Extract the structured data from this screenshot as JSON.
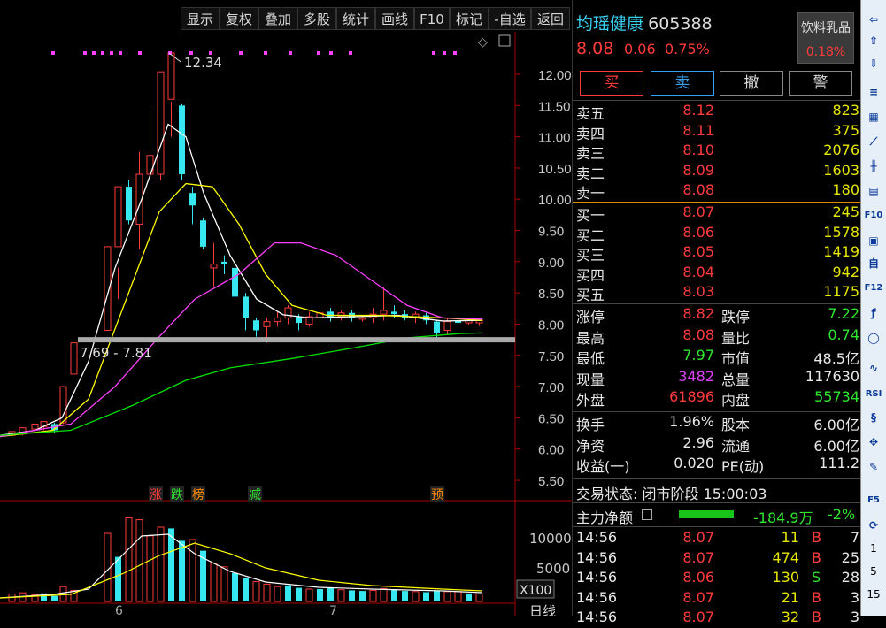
{
  "toolbar": {
    "buttons": [
      "显示",
      "复权",
      "叠加",
      "多股",
      "统计",
      "画线",
      "F10",
      "标记",
      "-自选",
      "返回"
    ]
  },
  "chart": {
    "price_ticks": [
      "12.00",
      "11.50",
      "11.00",
      "10.50",
      "10.00",
      "9.50",
      "9.00",
      "8.50",
      "8.00",
      "7.50",
      "7.00",
      "6.50",
      "6.00",
      "5.50"
    ],
    "high_label": "12.34",
    "range_label": "7.69 - 7.81",
    "event_tags": [
      {
        "text": "涨",
        "color": "#ff3b3b"
      },
      {
        "text": "跌",
        "color": "#2ee62e"
      },
      {
        "text": "榜",
        "color": "#ff8c00"
      },
      {
        "text": "减",
        "color": "#2ee62e"
      },
      {
        "text": "预",
        "color": "#ff8c00"
      }
    ],
    "volume_ticks": [
      "10000",
      "5000"
    ],
    "volume_unit": "X100",
    "month_labels": [
      "6",
      "7"
    ],
    "period_label": "日线",
    "ma_colors": {
      "ma5": "#ffffff",
      "ma10": "#ffff00",
      "ma20": "#ff40ff",
      "ma60": "#00e000"
    }
  },
  "quote": {
    "name": "均瑶健康",
    "code": "605388",
    "price": "8.08",
    "change": "0.06",
    "change_pct": "0.75%",
    "sector": "饮料乳品",
    "sector_pct": "0.18%",
    "buttons": [
      "买",
      "卖",
      "撤",
      "警"
    ],
    "asks": [
      {
        "label": "卖五",
        "price": "8.12",
        "vol": "823"
      },
      {
        "label": "卖四",
        "price": "8.11",
        "vol": "375"
      },
      {
        "label": "卖三",
        "price": "8.10",
        "vol": "2076"
      },
      {
        "label": "卖二",
        "price": "8.09",
        "vol": "1603"
      },
      {
        "label": "卖一",
        "price": "8.08",
        "vol": "180"
      }
    ],
    "bids": [
      {
        "label": "买一",
        "price": "8.07",
        "vol": "245"
      },
      {
        "label": "买二",
        "price": "8.06",
        "vol": "1578"
      },
      {
        "label": "买三",
        "price": "8.05",
        "vol": "1419"
      },
      {
        "label": "买四",
        "price": "8.04",
        "vol": "942"
      },
      {
        "label": "买五",
        "price": "8.03",
        "vol": "1175"
      }
    ],
    "stats": [
      {
        "l1": "涨停",
        "v1": "8.82",
        "c1": "red",
        "l2": "跌停",
        "v2": "7.22",
        "c2": "green"
      },
      {
        "l1": "最高",
        "v1": "8.08",
        "c1": "red",
        "l2": "量比",
        "v2": "0.74",
        "c2": "green"
      },
      {
        "l1": "最低",
        "v1": "7.97",
        "c1": "green",
        "l2": "市值",
        "v2": "48.5亿",
        "c2": "white"
      },
      {
        "l1": "现量",
        "v1": "3482",
        "c1": "purple",
        "l2": "总量",
        "v2": "117630",
        "c2": "white"
      },
      {
        "l1": "外盘",
        "v1": "61896",
        "c1": "red",
        "l2": "内盘",
        "v2": "55734",
        "c2": "green"
      }
    ],
    "fundamentals": [
      {
        "l1": "换手",
        "v1": "1.96%",
        "l2": "股本",
        "v2": "6.00亿"
      },
      {
        "l1": "净资",
        "v1": "2.96",
        "l2": "流通",
        "v2": "6.00亿"
      },
      {
        "l1": "收益(一)",
        "v1": "0.020",
        "l2": "PE(动)",
        "v2": "111.2"
      }
    ],
    "trade_status": "交易状态: 闭市阶段 15:00:03",
    "net_flow_label": "主力净额",
    "net_flow_value": "-184.9万",
    "net_flow_pct": "-2%",
    "ticks": [
      {
        "time": "14:56",
        "price": "8.07",
        "vol": "11",
        "side": "B",
        "n": "7"
      },
      {
        "time": "14:56",
        "price": "8.07",
        "vol": "474",
        "side": "B",
        "n": "25"
      },
      {
        "time": "14:56",
        "price": "8.06",
        "vol": "130",
        "side": "S",
        "n": "28"
      },
      {
        "time": "14:56",
        "price": "8.07",
        "vol": "21",
        "side": "B",
        "n": "3"
      },
      {
        "time": "14:56",
        "price": "8.07",
        "vol": "32",
        "side": "B",
        "n": "3"
      }
    ]
  },
  "sidebar": {
    "icons": [
      "arrow-left-icon",
      "arrow-up-icon",
      "arrow-down-icon",
      "list-icon",
      "grid-icon",
      "line-chart-icon",
      "candle-icon",
      "window-icon",
      "f10-icon",
      "doc-icon",
      "self-icon",
      "f12-icon",
      "fx-icon",
      "circle-icon",
      "wave-icon",
      "rsi-icon",
      "s-icon",
      "move-icon",
      "pencil-icon",
      "f5-icon",
      "refresh-icon"
    ],
    "labels": {
      "f10": "F10",
      "f12": "F12",
      "rsi": "RSI",
      "f5": "F5",
      "p1": "1",
      "p5": "5",
      "p15": "15"
    }
  }
}
